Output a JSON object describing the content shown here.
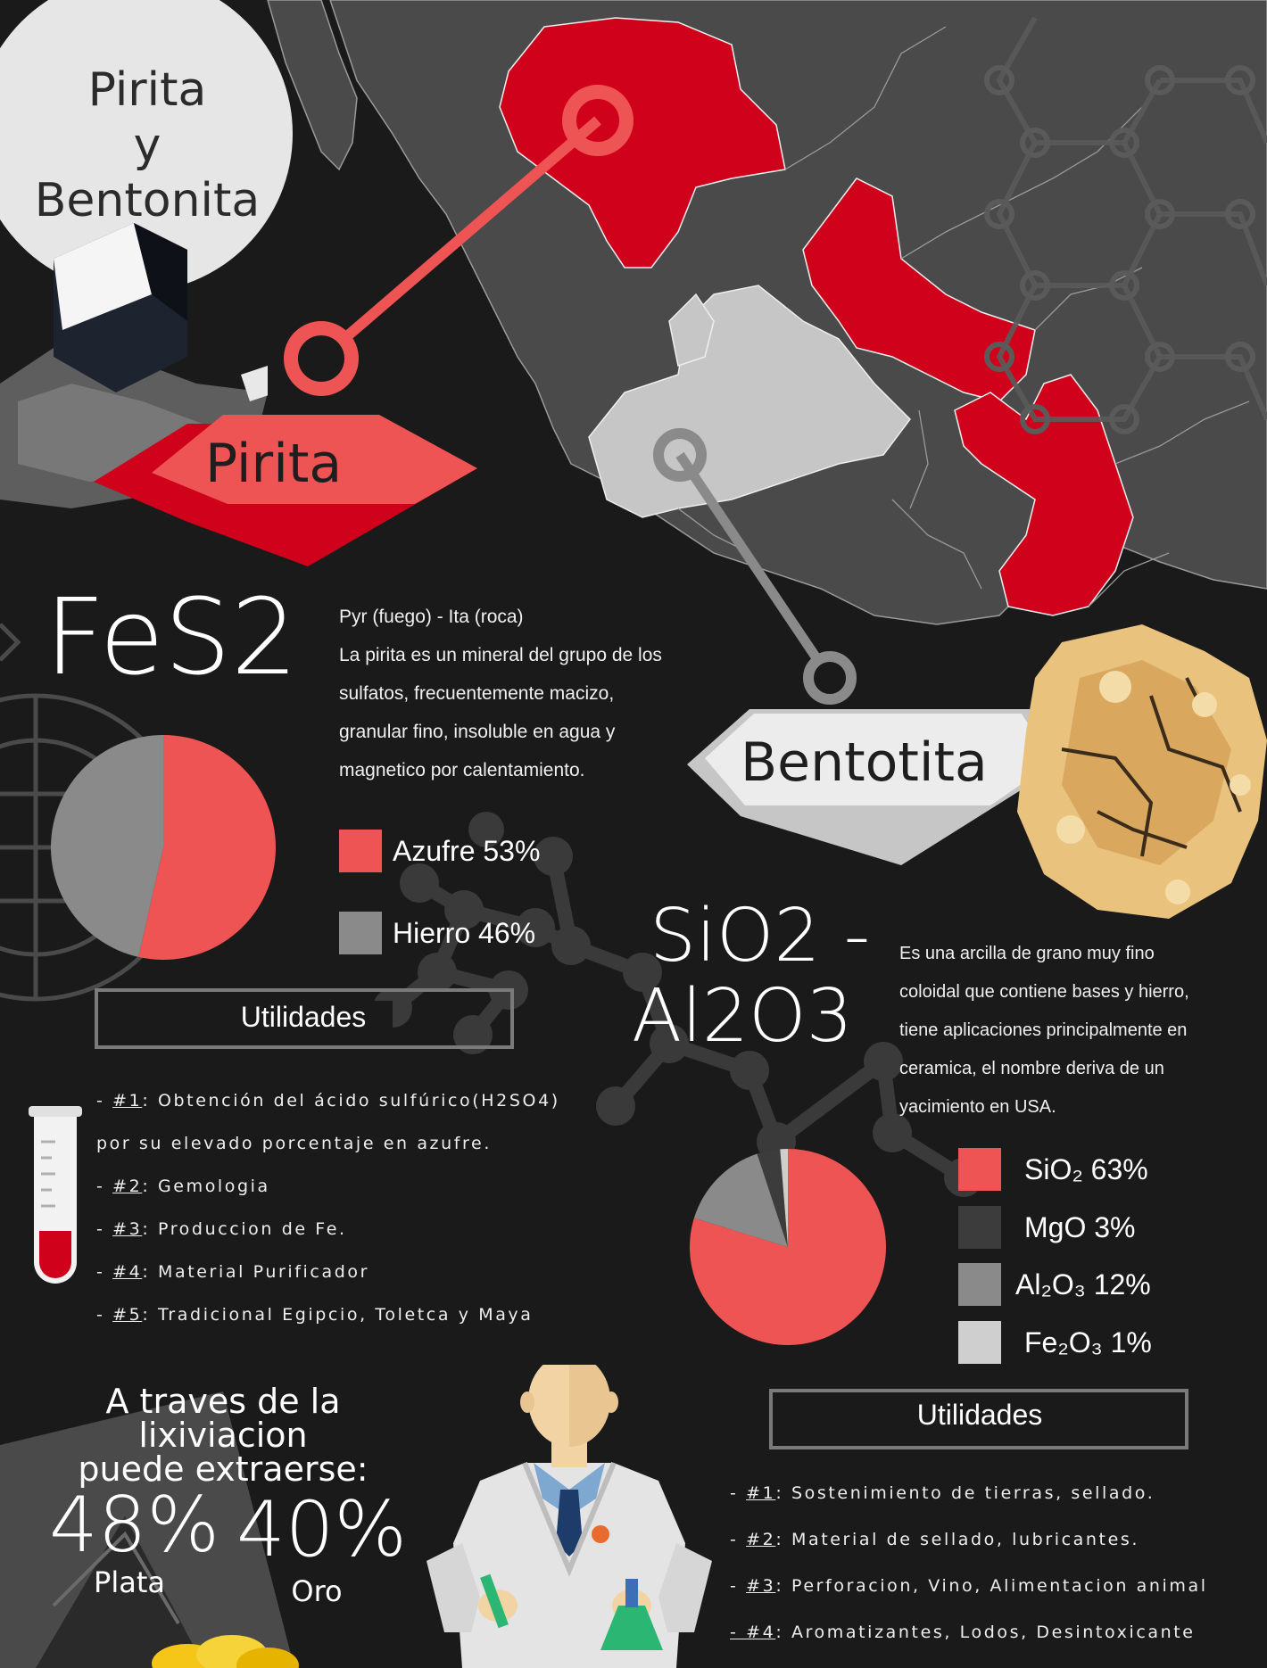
{
  "title": {
    "line1": "Pirita",
    "line2": "y",
    "line3": "Bentonita"
  },
  "pirita": {
    "banner": "Pirita",
    "formula": "FeS2",
    "etymology": "Pyr (fuego) - Ita (roca)",
    "description": [
      "La pirita es un mineral del grupo de los",
      "sulfatos, frecuentemente macizo,",
      "granular fino, insoluble en agua y",
      "magnetico por  calentamiento."
    ],
    "legend": [
      {
        "label": "Azufre 53%",
        "color": "#ef5454"
      },
      {
        "label": "Hierro 46%",
        "color": "#8a8a8a"
      }
    ],
    "utilidades_title": "Utilidades",
    "utilidades": [
      {
        "num": "#1",
        "text": ": Obtención del ácido sulfúrico(H2SO4)"
      },
      {
        "num": "",
        "text": "por su elevado porcentaje en azufre."
      },
      {
        "num": "#2",
        "text": ": Gemologia"
      },
      {
        "num": "#3",
        "text": ": Produccion de Fe."
      },
      {
        "num": "#4",
        "text": ": Material Purificador"
      },
      {
        "num": "#5",
        "text": ": Tradicional Egipcio, Toletca y Maya"
      }
    ]
  },
  "bentonita": {
    "banner": "Bentotita",
    "formula_line1": "SiO2 -",
    "formula_line2": "Al2O3",
    "description": [
      "Es una arcilla de grano muy fino",
      "coloidal que contiene bases y hierro,",
      "tiene aplicaciones principalmente en",
      "ceramica, el nombre deriva de un",
      "yacimiento en USA."
    ],
    "legend": [
      {
        "label": "SiO₂ 63%",
        "color": "#ef5454"
      },
      {
        "label": "MgO 3%",
        "color": "#3c3c3c"
      },
      {
        "label": "Al₂O₃ 12%",
        "color": "#8a8a8a"
      },
      {
        "label": "Fe₂O₃ 1%",
        "color": "#cfcfcf"
      }
    ],
    "utilidades_title": "Utilidades",
    "utilidades": [
      {
        "num": "#1",
        "text": ": Sostenimiento de tierras, sellado."
      },
      {
        "num": "#2",
        "text": ": Material de sellado, lubricantes."
      },
      {
        "num": "#3",
        "text": ": Perforacion, Vino, Alimentacion animal"
      },
      {
        "num": "#4",
        "text": ": Aromatizantes, Lodos, Desintoxicante"
      }
    ]
  },
  "lixiviacion": {
    "heading_line1": "A traves de la lixiviacion",
    "heading_line2": "puede extraerse:",
    "plata_value": "48%",
    "plata_label": "Plata",
    "oro_value": "40%",
    "oro_label": "Oro"
  },
  "chart_data": [
    {
      "type": "pie",
      "title": "",
      "slices": [
        {
          "label": "Azufre",
          "value": 53,
          "color": "#ef5454"
        },
        {
          "label": "Hierro",
          "value": 46,
          "color": "#8a8a8a"
        }
      ]
    },
    {
      "type": "pie",
      "title": "",
      "slices": [
        {
          "label": "SiO₂",
          "value": 63,
          "color": "#ef5454"
        },
        {
          "label": "Al₂O₃",
          "value": 12,
          "color": "#8a8a8a"
        },
        {
          "label": "MgO",
          "value": 3,
          "color": "#3c3c3c"
        },
        {
          "label": "Fe₂O₃",
          "value": 1,
          "color": "#cfcfcf"
        }
      ]
    }
  ],
  "colors": {
    "accent_red": "#d0021b",
    "light_red": "#ef5454",
    "map_gray": "#4a4a4a",
    "map_light": "#c8c8c8"
  }
}
